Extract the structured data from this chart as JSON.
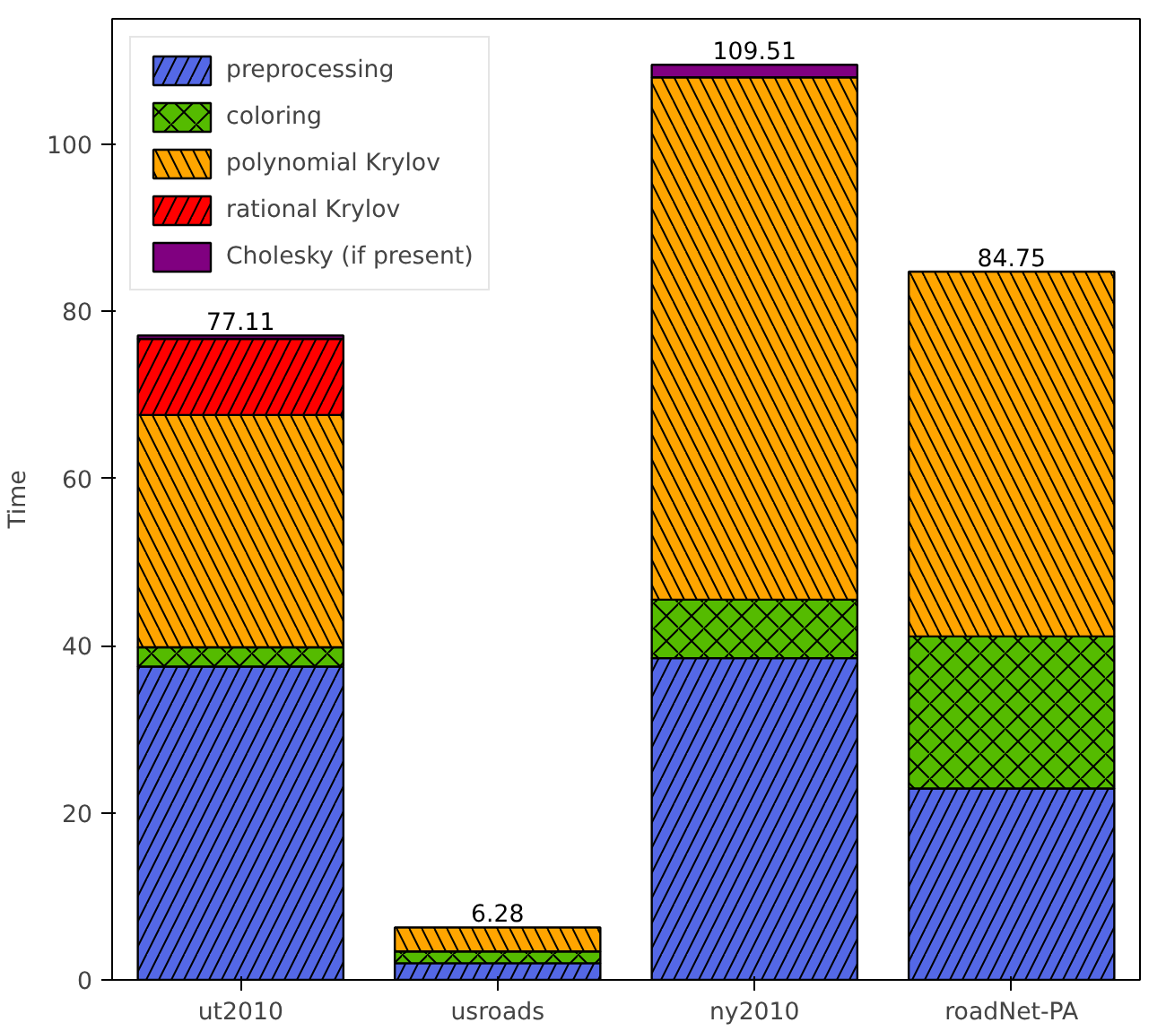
{
  "chart_data": {
    "type": "bar",
    "stacked": true,
    "ylabel": "Time",
    "categories": [
      "ut2010",
      "usroads",
      "ny2010",
      "roadNet-PA"
    ],
    "series": [
      {
        "name": "preprocessing",
        "color": "#5468e6",
        "values": [
          37.5,
          2.0,
          38.5,
          22.9
        ]
      },
      {
        "name": "coloring",
        "color": "#55bb00",
        "values": [
          2.3,
          1.4,
          7.0,
          18.2
        ]
      },
      {
        "name": "polynomial Krylov",
        "color": "#ffa500",
        "values": [
          27.8,
          2.88,
          62.5,
          43.65
        ]
      },
      {
        "name": "rational Krylov",
        "color": "#ff0000",
        "values": [
          9.1,
          null,
          null,
          null
        ]
      },
      {
        "name": "Cholesky (if present)",
        "color": "#800080",
        "values": [
          0.41,
          null,
          1.51,
          null
        ]
      }
    ],
    "totals": [
      "77.11",
      "6.28",
      "109.51",
      "84.75"
    ],
    "ylim": [
      0,
      115
    ],
    "yticks": [
      0,
      20,
      40,
      60,
      80,
      100
    ],
    "grid": false,
    "legend": "top left"
  }
}
